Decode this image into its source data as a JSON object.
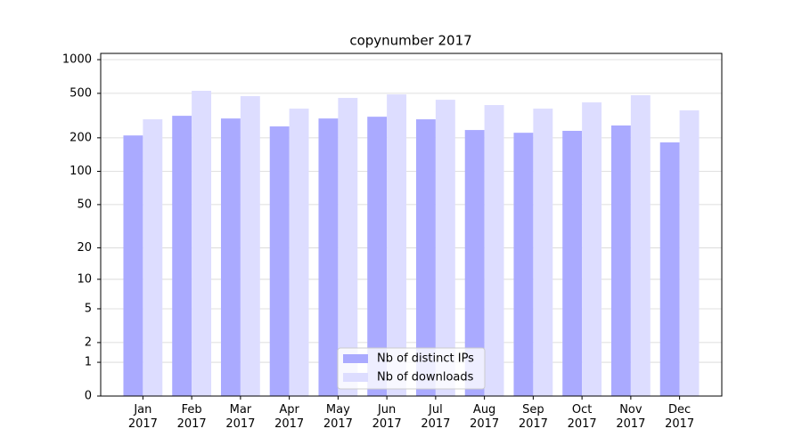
{
  "chart_data": {
    "type": "bar",
    "title": "copynumber 2017",
    "scale": "log1p",
    "categories": [
      "Jan\n2017",
      "Feb\n2017",
      "Mar\n2017",
      "Apr\n2017",
      "May\n2017",
      "Jun\n2017",
      "Jul\n2017",
      "Aug\n2017",
      "Sep\n2017",
      "Oct\n2017",
      "Nov\n2017",
      "Dec\n2017"
    ],
    "series": [
      {
        "name": "Nb of distinct IPs",
        "color": "#aaaaff",
        "values": [
          210,
          315,
          298,
          253,
          298,
          309,
          293,
          235,
          222,
          231,
          258,
          182
        ]
      },
      {
        "name": "Nb of downloads",
        "color": "#ddddff",
        "values": [
          293,
          527,
          472,
          365,
          455,
          489,
          438,
          393,
          365,
          415,
          481,
          352
        ]
      }
    ],
    "ylim": [
      0,
      1137
    ],
    "yticks": [
      0,
      1,
      2,
      5,
      10,
      20,
      50,
      100,
      200,
      500,
      1000
    ],
    "grid": true,
    "legend": "lower center"
  }
}
